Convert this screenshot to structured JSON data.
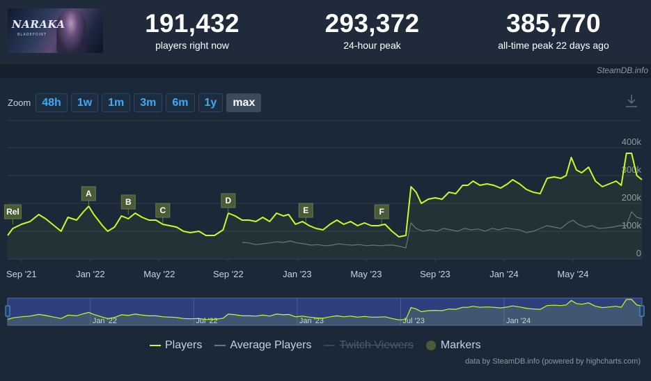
{
  "header": {
    "game_logo_text": "NARAKA",
    "game_logo_sub": "BLADEPOINT",
    "stats": [
      {
        "value": "191,432",
        "label": "players right now"
      },
      {
        "value": "293,372",
        "label": "24-hour peak"
      },
      {
        "value": "385,770",
        "label": "all-time peak 22 days ago"
      }
    ],
    "credit": "SteamDB.info"
  },
  "zoom": {
    "label": "Zoom",
    "buttons": [
      "48h",
      "1w",
      "1m",
      "3m",
      "6m",
      "1y",
      "max"
    ],
    "active": "max"
  },
  "legend": {
    "players": "Players",
    "average": "Average Players",
    "twitch": "Twitch Viewers",
    "markers": "Markers"
  },
  "footer_credit": "data by SteamDB.info (powered by highcharts.com)",
  "colors": {
    "players": "#c3ff1f",
    "average": "#6b7682",
    "background": "#1b2838",
    "grid": "#2e3d4e",
    "marker": "#4b5a37",
    "navigator_bg": "#2f3f7e"
  },
  "chart_data": {
    "type": "line",
    "x_unit": "months since Aug 2021",
    "x_ticks": [
      {
        "t": 1,
        "label": "Sep '21"
      },
      {
        "t": 5,
        "label": "Jan '22"
      },
      {
        "t": 9,
        "label": "May '22"
      },
      {
        "t": 13,
        "label": "Sep '22"
      },
      {
        "t": 17,
        "label": "Jan '23"
      },
      {
        "t": 21,
        "label": "May '23"
      },
      {
        "t": 25,
        "label": "Sep '23"
      },
      {
        "t": 29,
        "label": "Jan '24"
      },
      {
        "t": 33,
        "label": "May '24"
      }
    ],
    "y_ticks": [
      "0",
      "100k",
      "200k",
      "300k",
      "400k"
    ],
    "ylim": [
      0,
      400000
    ],
    "xlim": [
      0.2,
      37.0
    ],
    "series": [
      {
        "name": "Players",
        "points": [
          [
            0.2,
            85000
          ],
          [
            0.5,
            110000
          ],
          [
            1.0,
            125000
          ],
          [
            1.5,
            135000
          ],
          [
            2.0,
            160000
          ],
          [
            2.4,
            145000
          ],
          [
            2.9,
            120000
          ],
          [
            3.3,
            100000
          ],
          [
            3.7,
            150000
          ],
          [
            4.2,
            140000
          ],
          [
            4.6,
            170000
          ],
          [
            4.9,
            190000
          ],
          [
            5.2,
            160000
          ],
          [
            5.7,
            120000
          ],
          [
            6.0,
            100000
          ],
          [
            6.4,
            115000
          ],
          [
            6.8,
            155000
          ],
          [
            7.2,
            145000
          ],
          [
            7.6,
            165000
          ],
          [
            8.0,
            150000
          ],
          [
            8.4,
            140000
          ],
          [
            8.8,
            140000
          ],
          [
            9.2,
            125000
          ],
          [
            9.6,
            120000
          ],
          [
            10.0,
            115000
          ],
          [
            10.4,
            100000
          ],
          [
            10.8,
            95000
          ],
          [
            11.3,
            100000
          ],
          [
            11.7,
            85000
          ],
          [
            12.2,
            85000
          ],
          [
            12.7,
            105000
          ],
          [
            13.0,
            165000
          ],
          [
            13.4,
            155000
          ],
          [
            13.8,
            140000
          ],
          [
            14.2,
            140000
          ],
          [
            14.6,
            135000
          ],
          [
            15.0,
            150000
          ],
          [
            15.4,
            135000
          ],
          [
            15.8,
            165000
          ],
          [
            16.2,
            155000
          ],
          [
            16.5,
            160000
          ],
          [
            16.9,
            125000
          ],
          [
            17.3,
            135000
          ],
          [
            17.7,
            120000
          ],
          [
            18.1,
            110000
          ],
          [
            18.5,
            105000
          ],
          [
            18.9,
            125000
          ],
          [
            19.3,
            140000
          ],
          [
            19.7,
            125000
          ],
          [
            20.1,
            135000
          ],
          [
            20.5,
            120000
          ],
          [
            20.9,
            130000
          ],
          [
            21.3,
            120000
          ],
          [
            21.7,
            120000
          ],
          [
            22.1,
            125000
          ],
          [
            22.5,
            100000
          ],
          [
            22.9,
            80000
          ],
          [
            23.3,
            85000
          ],
          [
            23.6,
            260000
          ],
          [
            23.9,
            240000
          ],
          [
            24.2,
            200000
          ],
          [
            24.6,
            215000
          ],
          [
            25.0,
            220000
          ],
          [
            25.4,
            215000
          ],
          [
            25.8,
            240000
          ],
          [
            26.2,
            235000
          ],
          [
            26.6,
            265000
          ],
          [
            26.9,
            265000
          ],
          [
            27.2,
            280000
          ],
          [
            27.6,
            265000
          ],
          [
            28.0,
            270000
          ],
          [
            28.4,
            265000
          ],
          [
            28.8,
            255000
          ],
          [
            29.2,
            270000
          ],
          [
            29.5,
            285000
          ],
          [
            29.9,
            270000
          ],
          [
            30.3,
            250000
          ],
          [
            30.7,
            240000
          ],
          [
            31.1,
            235000
          ],
          [
            31.5,
            290000
          ],
          [
            31.9,
            295000
          ],
          [
            32.3,
            290000
          ],
          [
            32.6,
            300000
          ],
          [
            32.9,
            365000
          ],
          [
            33.2,
            320000
          ],
          [
            33.5,
            310000
          ],
          [
            33.9,
            330000
          ],
          [
            34.3,
            280000
          ],
          [
            34.7,
            260000
          ],
          [
            35.1,
            270000
          ],
          [
            35.5,
            280000
          ],
          [
            35.8,
            265000
          ],
          [
            36.1,
            380000
          ],
          [
            36.4,
            380000
          ],
          [
            36.7,
            300000
          ],
          [
            37.0,
            285000
          ]
        ]
      },
      {
        "name": "Average Players",
        "points": [
          [
            13.8,
            60000
          ],
          [
            14.2,
            58000
          ],
          [
            14.6,
            52000
          ],
          [
            15.0,
            55000
          ],
          [
            15.4,
            58000
          ],
          [
            15.8,
            62000
          ],
          [
            16.2,
            60000
          ],
          [
            16.6,
            65000
          ],
          [
            17.0,
            58000
          ],
          [
            17.4,
            55000
          ],
          [
            17.8,
            50000
          ],
          [
            18.2,
            52000
          ],
          [
            18.6,
            48000
          ],
          [
            19.0,
            50000
          ],
          [
            19.4,
            55000
          ],
          [
            19.8,
            52000
          ],
          [
            20.2,
            50000
          ],
          [
            20.6,
            52000
          ],
          [
            21.0,
            48000
          ],
          [
            21.4,
            50000
          ],
          [
            21.8,
            48000
          ],
          [
            22.2,
            50000
          ],
          [
            22.6,
            50000
          ],
          [
            23.0,
            45000
          ],
          [
            23.3,
            40000
          ],
          [
            23.6,
            130000
          ],
          [
            23.9,
            110000
          ],
          [
            24.3,
            100000
          ],
          [
            24.7,
            105000
          ],
          [
            25.1,
            100000
          ],
          [
            25.5,
            110000
          ],
          [
            25.9,
            105000
          ],
          [
            26.3,
            100000
          ],
          [
            26.7,
            110000
          ],
          [
            27.1,
            105000
          ],
          [
            27.5,
            108000
          ],
          [
            27.9,
            100000
          ],
          [
            28.3,
            110000
          ],
          [
            28.7,
            105000
          ],
          [
            29.1,
            112000
          ],
          [
            29.5,
            108000
          ],
          [
            29.9,
            105000
          ],
          [
            30.3,
            95000
          ],
          [
            30.7,
            100000
          ],
          [
            31.1,
            110000
          ],
          [
            31.5,
            120000
          ],
          [
            31.9,
            115000
          ],
          [
            32.3,
            110000
          ],
          [
            32.7,
            130000
          ],
          [
            33.0,
            140000
          ],
          [
            33.3,
            125000
          ],
          [
            33.7,
            115000
          ],
          [
            34.1,
            120000
          ],
          [
            34.5,
            110000
          ],
          [
            34.9,
            112000
          ],
          [
            35.3,
            115000
          ],
          [
            35.7,
            120000
          ],
          [
            36.1,
            120000
          ],
          [
            36.4,
            170000
          ],
          [
            36.7,
            150000
          ],
          [
            37.0,
            145000
          ]
        ]
      }
    ],
    "markers": [
      {
        "label": "Rel",
        "t": 0.5,
        "y": 125000
      },
      {
        "label": "A",
        "t": 4.9,
        "y": 190000
      },
      {
        "label": "B",
        "t": 7.2,
        "y": 160000
      },
      {
        "label": "C",
        "t": 9.2,
        "y": 130000
      },
      {
        "label": "D",
        "t": 13.0,
        "y": 165000
      },
      {
        "label": "E",
        "t": 17.5,
        "y": 130000
      },
      {
        "label": "F",
        "t": 21.9,
        "y": 125000
      }
    ],
    "navigator_labels": [
      {
        "t": 5,
        "label": "Jan '22"
      },
      {
        "t": 11,
        "label": "Jul '22"
      },
      {
        "t": 17,
        "label": "Jan '23"
      },
      {
        "t": 23,
        "label": "Jul '23"
      },
      {
        "t": 29,
        "label": "Jan '24"
      }
    ],
    "legend_position": "bottom",
    "grid": true
  }
}
